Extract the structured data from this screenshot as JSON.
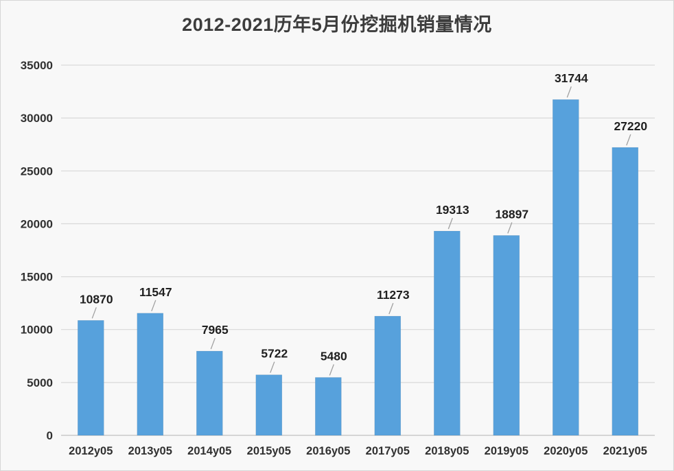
{
  "chart_data": {
    "type": "bar",
    "title": "2012-2021历年5月份挖掘机销量情况",
    "categories": [
      "2012y05",
      "2013y05",
      "2014y05",
      "2015y05",
      "2016y05",
      "2017y05",
      "2018y05",
      "2019y05",
      "2020y05",
      "2021y05"
    ],
    "values": [
      10870,
      11547,
      7965,
      5722,
      5480,
      11273,
      19313,
      18897,
      31744,
      27220
    ],
    "xlabel": "",
    "ylabel": "",
    "ylim": [
      0,
      35000
    ],
    "yticks": [
      0,
      5000,
      10000,
      15000,
      20000,
      25000,
      30000,
      35000
    ],
    "grid": true,
    "legend": "none",
    "data_labels": true
  },
  "colors": {
    "bar": "#57a1dc",
    "gridline": "#d9d9d9",
    "baseline": "#c9c9c9",
    "title_text": "#3c3c3c",
    "axis_text": "#303030",
    "value_text": "#1f1f1f",
    "leader_line": "#a0a0a0",
    "background": "#f8f8f8",
    "border": "#d6d6d6"
  }
}
